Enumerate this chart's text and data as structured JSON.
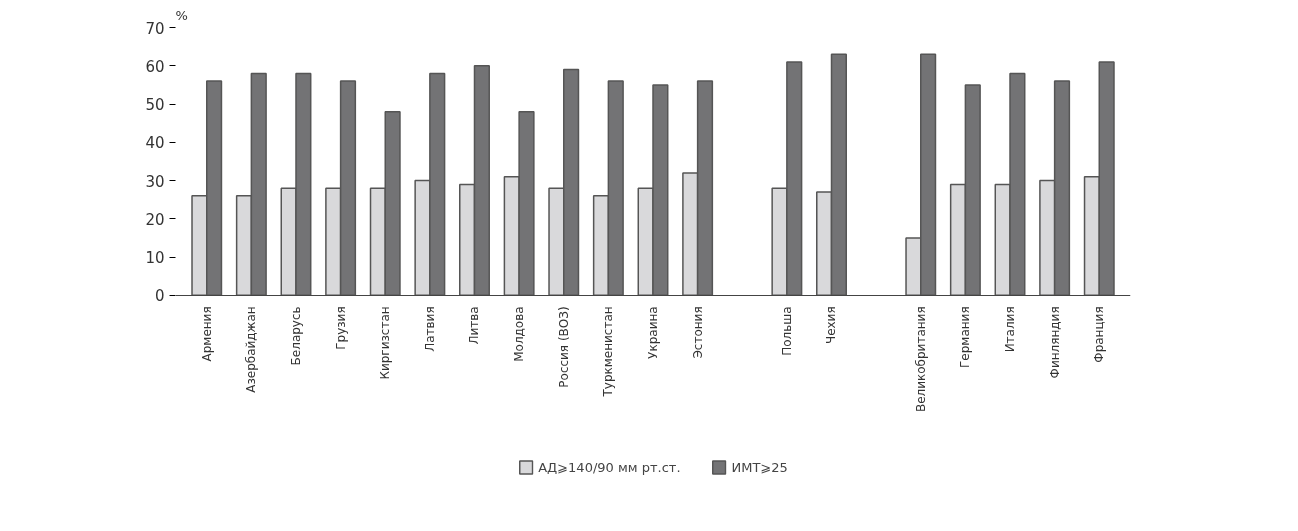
{
  "chart_data": {
    "type": "bar",
    "ylabel": "%",
    "categories": [
      "Армения",
      "Азербайджан",
      "Беларусь",
      "Грузия",
      "Киргизстан",
      "Латвия",
      "Литва",
      "Молдова",
      "Россия (ВОЗ)",
      "Туркменистан",
      "Украина",
      "Эстония",
      null,
      "Польша",
      "Чехия",
      null,
      "Великобритания",
      "Германия",
      "Италия",
      "Финляндия",
      "Франция"
    ],
    "series": [
      {
        "name": "АД⩾140/90 мм рт.ст.",
        "color": "#d9d9db",
        "values": [
          26,
          26,
          28,
          28,
          28,
          30,
          29,
          31,
          28,
          26,
          28,
          32,
          null,
          28,
          27,
          null,
          15,
          29,
          29,
          30,
          31
        ]
      },
      {
        "name": "ИМТ⩾25",
        "color": "#737375",
        "values": [
          56,
          58,
          58,
          56,
          48,
          58,
          60,
          48,
          59,
          56,
          55,
          56,
          null,
          61,
          63,
          null,
          63,
          55,
          58,
          56,
          61
        ]
      }
    ],
    "ylim": [
      0,
      70
    ],
    "yticks": [
      0,
      10,
      20,
      30,
      40,
      50,
      60,
      70
    ],
    "grid": false,
    "legend": "bottom"
  }
}
